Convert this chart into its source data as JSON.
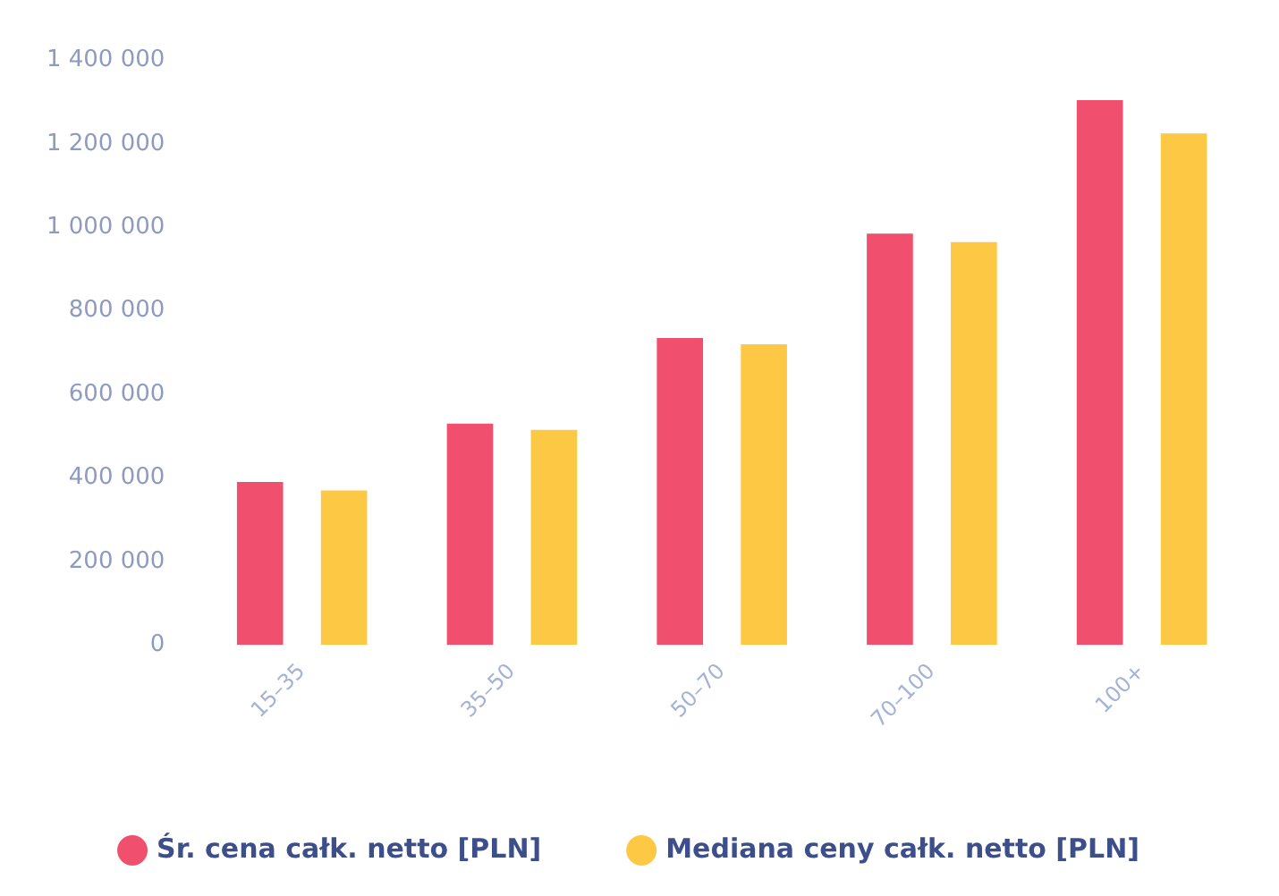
{
  "chart_data": {
    "type": "bar",
    "categories": [
      "15–35",
      "35–50",
      "50–70",
      "70–100",
      "100+"
    ],
    "series": [
      {
        "name": "Śr. cena całk. netto [PLN]",
        "color": "#f0506e",
        "values": [
          390000,
          530000,
          735000,
          985000,
          1305000
        ]
      },
      {
        "name": "Mediana ceny całk. netto [PLN]",
        "color": "#fdc844",
        "values": [
          370000,
          515000,
          720000,
          965000,
          1225000
        ]
      }
    ],
    "ylim": [
      0,
      1400000
    ],
    "yticks": [
      0,
      {
        "value": 200000,
        "label": "200 000"
      },
      {
        "value": 400000,
        "label": "400 000"
      },
      {
        "value": 600000,
        "label": "600 000"
      },
      {
        "value": 800000,
        "label": "800 000"
      },
      {
        "value": 1000000,
        "label": "1 000 000"
      },
      {
        "value": 1200000,
        "label": "1 200 000"
      },
      {
        "value": 1400000,
        "label": "1 400 000"
      }
    ],
    "grid": false,
    "legend": "bottom"
  }
}
